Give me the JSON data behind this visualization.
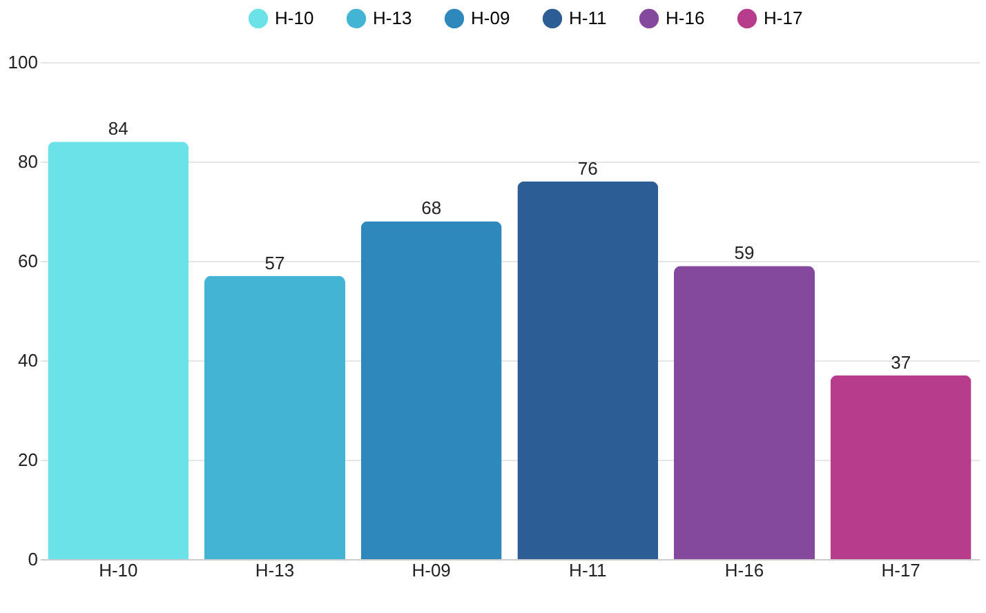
{
  "chart_data": {
    "type": "bar",
    "categories": [
      "H-10",
      "H-13",
      "H-09",
      "H-11",
      "H-16",
      "H-17"
    ],
    "series": [
      {
        "name": "H-10",
        "color": "#6ae2e8",
        "values": [
          84,
          null,
          null,
          null,
          null,
          null
        ]
      },
      {
        "name": "H-13",
        "color": "#44b4d4",
        "values": [
          null,
          57,
          null,
          null,
          null,
          null
        ]
      },
      {
        "name": "H-09",
        "color": "#2e88bc",
        "values": [
          null,
          null,
          68,
          null,
          null,
          null
        ]
      },
      {
        "name": "H-11",
        "color": "#2c5d94",
        "values": [
          null,
          null,
          null,
          76,
          null,
          null
        ]
      },
      {
        "name": "H-16",
        "color": "#84489c",
        "values": [
          null,
          null,
          null,
          null,
          59,
          null
        ]
      },
      {
        "name": "H-17",
        "color": "#b83c8c",
        "values": [
          null,
          null,
          null,
          null,
          null,
          37
        ]
      }
    ],
    "stacked": true,
    "ylim": [
      0,
      100
    ],
    "yticks": [
      0,
      20,
      40,
      60,
      80,
      100
    ],
    "grid": "y",
    "legend": "top",
    "data_labels": true
  }
}
